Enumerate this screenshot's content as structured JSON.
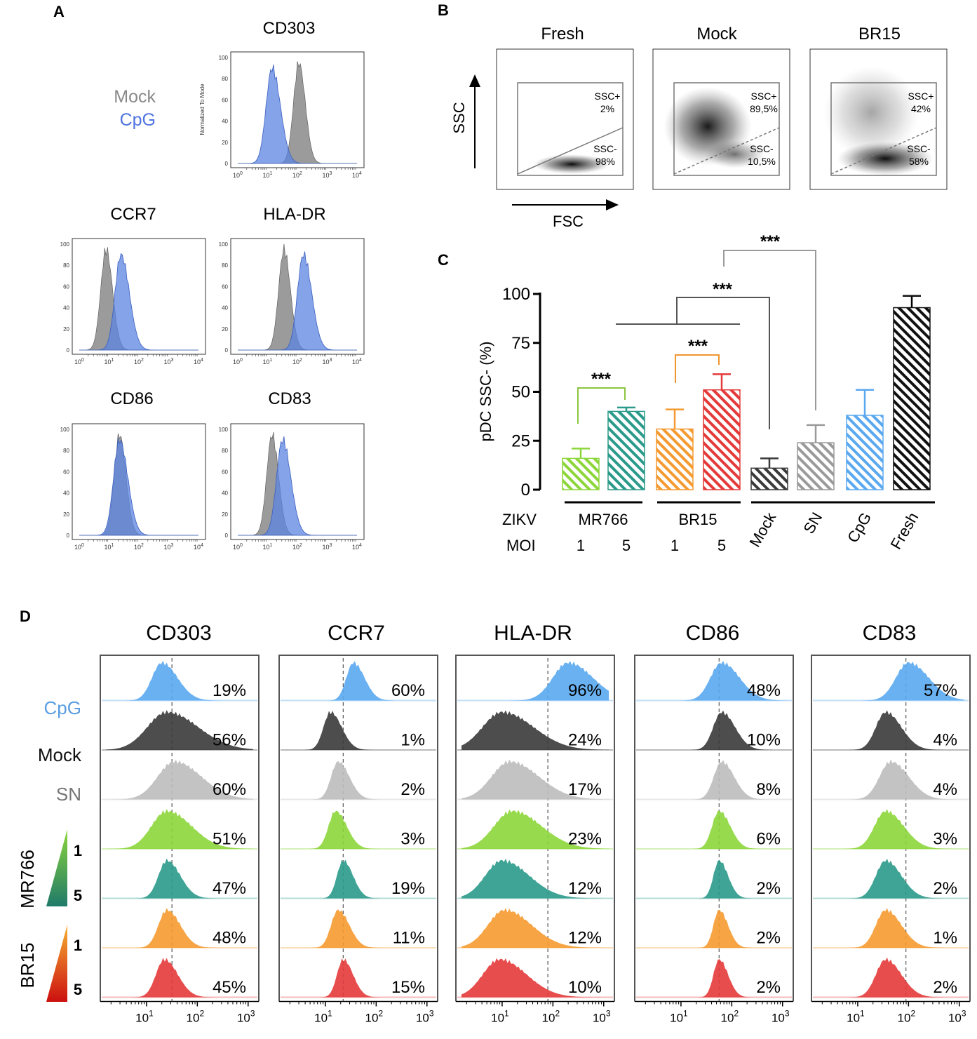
{
  "panel_letters": {
    "a": "A",
    "b": "B",
    "c": "C",
    "d": "D"
  },
  "colors": {
    "mock": "#8a8a8a",
    "cpg": "#5b84e0",
    "cpg_light": "#5aa8f0",
    "mock_dark": "#3a3a3a",
    "sn": "#bdbdbd",
    "mr766_1": "#8cd63a",
    "mr766_5": "#2a9a8a",
    "br15_1": "#f59a30",
    "br15_5": "#e43a3a",
    "fresh": "#111111",
    "sig_green": "#8cc63f",
    "sig_orange": "#f0962e",
    "sig_gray": "#9a9a9a",
    "sig_dark": "#555555"
  },
  "panel_a": {
    "legend": {
      "mock": "Mock",
      "cpg": "CpG"
    },
    "y_axis_label": "Normalized To Mode",
    "y_ticks": [
      "0",
      "20",
      "40",
      "60",
      "80",
      "100"
    ],
    "x_ticks": [
      "0",
      "1",
      "2",
      "3",
      "4"
    ],
    "plots": [
      {
        "title": "CD303",
        "mock_peak_log": 2.05,
        "cpg_peak_log": 1.15
      },
      {
        "title": "CCR7",
        "mock_peak_log": 0.9,
        "cpg_peak_log": 1.4
      },
      {
        "title": "HLA-DR",
        "mock_peak_log": 1.55,
        "cpg_peak_log": 2.2
      },
      {
        "title": "CD86",
        "mock_peak_log": 1.35,
        "cpg_peak_log": 1.35
      },
      {
        "title": "CD83",
        "mock_peak_log": 1.15,
        "cpg_peak_log": 1.5
      }
    ]
  },
  "panel_b": {
    "y_axis": "SSC",
    "x_axis": "FSC",
    "plots": [
      {
        "title": "Fresh",
        "ssc_pos_label": "SSC+",
        "ssc_pos": "2%",
        "ssc_neg_label": "SSC-",
        "ssc_neg": "98%"
      },
      {
        "title": "Mock",
        "ssc_pos_label": "SSC+",
        "ssc_pos": "89,5%",
        "ssc_neg_label": "SSC-",
        "ssc_neg": "10,5%"
      },
      {
        "title": "BR15",
        "ssc_pos_label": "SSC+",
        "ssc_pos": "42%",
        "ssc_neg_label": "SSC-",
        "ssc_neg": "58%"
      }
    ]
  },
  "chart_data": {
    "type": "bar",
    "ylabel": "pDC SSC- (%)",
    "ylim": [
      0,
      100
    ],
    "yticks": [
      "0",
      "25",
      "50",
      "75",
      "100"
    ],
    "categories": [
      "MR766 1",
      "MR766 5",
      "BR15 1",
      "BR15 5",
      "Mock",
      "SN",
      "CpG",
      "Fresh"
    ],
    "values": [
      16,
      40,
      31,
      51,
      11,
      24,
      38,
      93
    ],
    "errors": [
      5,
      2,
      10,
      8,
      5,
      9,
      13,
      6
    ],
    "row_labels": {
      "zikv": "ZIKV",
      "moi": "MOI"
    },
    "groups": [
      {
        "name": "MR766",
        "moi": [
          "1",
          "5"
        ]
      },
      {
        "name": "BR15",
        "moi": [
          "1",
          "5"
        ]
      }
    ],
    "rotated_labels": [
      "Mock",
      "SN",
      "CpG",
      "Fresh"
    ],
    "significance": [
      "***",
      "***",
      "***",
      "***"
    ]
  },
  "panel_d": {
    "markers": [
      "CD303",
      "CCR7",
      "HLA-DR",
      "CD86",
      "CD83"
    ],
    "row_labels": {
      "cpg": "CpG",
      "mock": "Mock",
      "sn": "SN",
      "mr766": "MR766",
      "br15": "BR15",
      "moi_1": "1",
      "moi_5": "5"
    },
    "x_ticks": [
      "10",
      "10",
      "10"
    ],
    "x_tick_exps": [
      "1",
      "2",
      "3"
    ],
    "percentages": [
      [
        "19%",
        "56%",
        "60%",
        "51%",
        "47%",
        "48%",
        "45%"
      ],
      [
        "60%",
        "1%",
        "2%",
        "3%",
        "19%",
        "11%",
        "15%"
      ],
      [
        "96%",
        "24%",
        "17%",
        "23%",
        "12%",
        "12%",
        "10%"
      ],
      [
        "48%",
        "10%",
        "8%",
        "6%",
        "2%",
        "2%",
        "2%"
      ],
      [
        "57%",
        "4%",
        "4%",
        "3%",
        "2%",
        "1%",
        "2%"
      ]
    ],
    "peak_logs": [
      [
        1.3,
        1.4,
        1.55,
        1.4,
        1.4,
        1.4,
        1.35
      ],
      [
        1.55,
        1.1,
        1.25,
        1.2,
        1.35,
        1.25,
        1.35
      ],
      [
        2.3,
        1.0,
        1.15,
        1.2,
        1.0,
        1.05,
        0.95
      ],
      [
        1.8,
        1.8,
        1.8,
        1.75,
        1.75,
        1.75,
        1.75
      ],
      [
        2.0,
        1.55,
        1.65,
        1.55,
        1.55,
        1.55,
        1.55
      ]
    ],
    "widths": [
      [
        0.35,
        0.7,
        0.6,
        0.55,
        0.3,
        0.3,
        0.3
      ],
      [
        0.25,
        0.25,
        0.25,
        0.25,
        0.22,
        0.25,
        0.22
      ],
      [
        0.55,
        0.7,
        0.65,
        0.65,
        0.6,
        0.6,
        0.6
      ],
      [
        0.4,
        0.3,
        0.28,
        0.25,
        0.2,
        0.2,
        0.2
      ],
      [
        0.45,
        0.35,
        0.4,
        0.4,
        0.35,
        0.35,
        0.35
      ]
    ]
  }
}
